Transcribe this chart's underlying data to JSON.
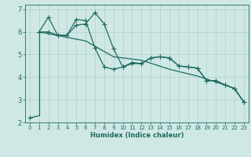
{
  "xlabel": "Humidex (Indice chaleur)",
  "bg_color": "#cfe8e5",
  "line_color": "#1e6b5e",
  "grid_color": "#afd0cc",
  "xlim": [
    -0.5,
    23.5
  ],
  "ylim": [
    2,
    7.2
  ],
  "xticks": [
    0,
    1,
    2,
    3,
    4,
    5,
    6,
    7,
    8,
    9,
    10,
    11,
    12,
    13,
    14,
    15,
    16,
    17,
    18,
    19,
    20,
    21,
    22,
    23
  ],
  "yticks": [
    2,
    3,
    4,
    5,
    6,
    7
  ],
  "line1_x": [
    0,
    1,
    1,
    2,
    3,
    4,
    5,
    6,
    7,
    8,
    9,
    10,
    11,
    12,
    13,
    14,
    15,
    16,
    17,
    18,
    19,
    20,
    21,
    22,
    23
  ],
  "line1_y": [
    2.2,
    2.3,
    6.0,
    6.65,
    5.85,
    5.85,
    6.55,
    6.5,
    5.3,
    4.45,
    4.35,
    4.45,
    4.65,
    4.6,
    4.85,
    4.9,
    4.85,
    4.5,
    4.45,
    4.4,
    3.85,
    3.85,
    3.65,
    3.5,
    2.9
  ],
  "line2_x": [
    1,
    2,
    3,
    4,
    5,
    6,
    7,
    8,
    9,
    10,
    11,
    12,
    13,
    14,
    15,
    16,
    17,
    18,
    19,
    20,
    21,
    22,
    23
  ],
  "line2_y": [
    6.0,
    6.0,
    5.85,
    5.85,
    6.3,
    6.35,
    6.85,
    6.35,
    5.25,
    4.45,
    4.6,
    4.6,
    4.85,
    4.9,
    4.85,
    4.5,
    4.45,
    4.4,
    3.85,
    3.85,
    3.65,
    3.5,
    2.9
  ],
  "line3_x": [
    1,
    6,
    9,
    12,
    15,
    18,
    21,
    22,
    23
  ],
  "line3_y": [
    6.0,
    5.6,
    4.9,
    4.75,
    4.35,
    4.05,
    3.65,
    3.5,
    2.9
  ]
}
